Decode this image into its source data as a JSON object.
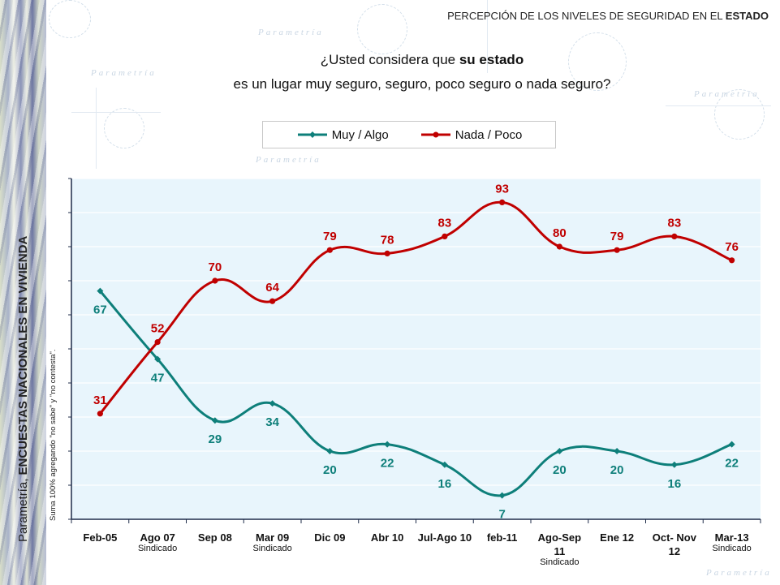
{
  "header": {
    "title_prefix": "PERCEPCIÓN DE LOS NIVELES DE SEGURIDAD EN EL",
    "title_bold": "ESTADO"
  },
  "question": {
    "line1_prefix": "¿Usted considera que ",
    "line1_bold": "su estado",
    "line2": "es un lugar muy seguro, seguro, poco seguro o nada seguro?"
  },
  "side_label": {
    "prefix": "Parametría, ",
    "bold": "ENCUESTAS NACIONALES EN VIVIENDA"
  },
  "note": "Suma 100% agregando \"no sabe\" y \"no contesta\".",
  "watermark_text": "Parametría",
  "colors": {
    "muy_algo": "#0e7f7a",
    "nada_poco": "#c00000",
    "plot_bg": "#e8f5fc",
    "axis": "#1f2d4a"
  },
  "chart_data": {
    "type": "line",
    "title": "¿Usted considera que su estado es un lugar muy seguro, seguro, poco seguro o nada seguro?",
    "xlabel": "",
    "ylabel": "",
    "ylim": [
      0,
      100
    ],
    "legend_position": "top-center",
    "grid": true,
    "categories": [
      {
        "label": "Feb-05",
        "sub": ""
      },
      {
        "label": "Ago 07",
        "sub": "Sindicado"
      },
      {
        "label": "Sep 08",
        "sub": ""
      },
      {
        "label": "Mar 09",
        "sub": "Sindicado"
      },
      {
        "label": "Dic 09",
        "sub": ""
      },
      {
        "label": "Abr 10",
        "sub": ""
      },
      {
        "label": "Jul-Ago 10",
        "sub": ""
      },
      {
        "label": "feb-11",
        "sub": ""
      },
      {
        "label": "Ago-Sep|11",
        "sub": "Sindicado"
      },
      {
        "label": "Ene 12",
        "sub": ""
      },
      {
        "label": "Oct- Nov|12",
        "sub": ""
      },
      {
        "label": "Mar-13",
        "sub": "Sindicado"
      }
    ],
    "series": [
      {
        "name": "Muy / Algo",
        "color_key": "muy_algo",
        "marker": "diamond",
        "label_pos": "below",
        "values": [
          67,
          47,
          29,
          34,
          20,
          22,
          16,
          7,
          20,
          20,
          16,
          22
        ]
      },
      {
        "name": "Nada / Poco",
        "color_key": "nada_poco",
        "marker": "circle",
        "label_pos": "above",
        "values": [
          31,
          52,
          70,
          64,
          79,
          78,
          83,
          93,
          80,
          79,
          83,
          76
        ]
      }
    ]
  }
}
